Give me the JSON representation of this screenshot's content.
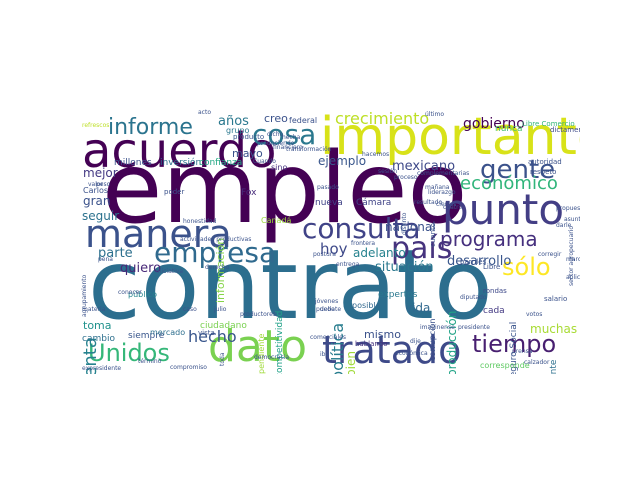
{
  "words": [
    {
      "text": "empleo",
      "color": "#440154"
    },
    {
      "text": "contrato",
      "color": "#2c6e8e"
    },
    {
      "text": "importante",
      "color": "#d8e219"
    },
    {
      "text": "acuerdo",
      "color": "#440154"
    },
    {
      "text": "manera",
      "color": "#3b528b"
    },
    {
      "text": "punto",
      "color": "#433e85"
    },
    {
      "text": "dato",
      "color": "#7ad151"
    },
    {
      "text": "tratado",
      "color": "#3e4a89"
    },
    {
      "text": "país",
      "color": "#46337e"
    },
    {
      "text": "consulta",
      "color": "#404387"
    },
    {
      "text": "empresa",
      "color": "#306a8e"
    },
    {
      "text": "cosa",
      "color": "#2a788e"
    },
    {
      "text": "informe",
      "color": "#2b748e"
    },
    {
      "text": "gente",
      "color": "#3b528b"
    },
    {
      "text": "programa",
      "color": "#46307e"
    },
    {
      "text": "tiempo",
      "color": "#481f70"
    },
    {
      "text": "Unidos",
      "color": "#35b779"
    },
    {
      "text": "sólo",
      "color": "#fde725"
    },
    {
      "text": "crecimiento",
      "color": "#bddf26"
    },
    {
      "text": "económico",
      "color": "#31b57b"
    },
    {
      "text": "desarrollo",
      "color": "#39568c"
    },
    {
      "text": "nacional",
      "color": "#3b528b"
    },
    {
      "text": "hecho",
      "color": "#39568c"
    },
    {
      "text": "gobierno",
      "color": "#440154"
    },
    {
      "text": "hoy",
      "color": "#3e4989"
    },
    {
      "text": "cuenta",
      "color": "#26828e"
    },
    {
      "text": "parte",
      "color": "#2d708e"
    },
    {
      "text": "quiero",
      "color": "#482878"
    },
    {
      "text": "años",
      "color": "#2a788e"
    },
    {
      "text": "mexicano",
      "color": "#3e4989"
    },
    {
      "text": "política",
      "color": "#287d8e"
    },
    {
      "text": "ejemplo",
      "color": "#39568c"
    },
    {
      "text": "situación",
      "color": "#2a788e"
    },
    {
      "text": "producción",
      "color": "#20a386"
    },
    {
      "text": "adelanto",
      "color": "#26828e"
    },
    {
      "text": "vida",
      "color": "#31688e"
    },
    {
      "text": "mismo",
      "color": "#3b528b"
    },
    {
      "text": "bien",
      "color": "#a0da39"
    },
    {
      "text": "muchas",
      "color": "#a8db34"
    },
    {
      "text": "mejor",
      "color": "#443983"
    },
    {
      "text": "gran",
      "color": "#3b528b"
    },
    {
      "text": "seguir",
      "color": "#2c728e"
    },
    {
      "text": "creo",
      "color": "#3b528b"
    },
    {
      "text": "mayo",
      "color": "#3b528b"
    },
    {
      "text": "toma",
      "color": "#20928c"
    },
    {
      "text": "cambio",
      "color": "#2d708e"
    },
    {
      "text": "siempre",
      "color": "#39568c"
    },
    {
      "text": "expertos",
      "color": "#2a788e"
    },
    {
      "text": "cada",
      "color": "#443a83"
    },
    {
      "text": "nunca",
      "color": "#4ac16d"
    },
    {
      "text": "Fox",
      "color": "#472c7a"
    },
    {
      "text": "nueva",
      "color": "#404387"
    },
    {
      "text": "Cámara",
      "color": "#414487"
    },
    {
      "text": "fertilizante",
      "color": "#2d708e"
    },
    {
      "text": "Seguro Social",
      "color": "#3a548c"
    },
    {
      "text": "información",
      "color": "#86d549"
    },
    {
      "text": "competitividad",
      "color": "#1fa188"
    },
    {
      "text": "inversión",
      "color": "#2c718e"
    },
    {
      "text": "millones",
      "color": "#3b528b"
    },
    {
      "text": "confianza",
      "color": "#22a884"
    },
    {
      "text": "grupo",
      "color": "#2a788e"
    },
    {
      "text": "federal",
      "color": "#3b528b"
    },
    {
      "text": "posible",
      "color": "#31688e"
    },
    {
      "text": "público",
      "color": "#25848e"
    },
    {
      "text": "mercado",
      "color": "#2e6f8e"
    },
    {
      "text": "ciudadano",
      "color": "#7ad151"
    },
    {
      "text": "Carlos",
      "color": "#3b528b"
    },
    {
      "text": "sino",
      "color": "#46337e"
    },
    {
      "text": "Canadá",
      "color": "#9bd93c"
    },
    {
      "text": "corresponde",
      "color": "#5ec962"
    },
    {
      "text": "corrupción",
      "color": "#3b528b"
    },
    {
      "text": "pendiente",
      "color": "#a0da39"
    },
    {
      "text": "Libre Comercio",
      "color": "#35b779"
    },
    {
      "text": "dictamen",
      "color": "#3e4a89"
    },
    {
      "text": "hablando",
      "color": "#46327e"
    },
    {
      "text": "salario",
      "color": "#3b528b"
    },
    {
      "text": "rondas",
      "color": "#3e4989"
    },
    {
      "text": "vista",
      "color": "#3b528b"
    },
    {
      "text": "poder",
      "color": "#3b528b"
    },
    {
      "text": "producto",
      "color": "#39568c"
    },
    {
      "text": "respeto",
      "color": "#3b528b"
    },
    {
      "text": "barriles",
      "color": "#3b528b"
    },
    {
      "text": "Libre",
      "color": "#3b528b"
    },
    {
      "text": "autoridad",
      "color": "#3b528b"
    },
    {
      "text": "acto",
      "color": "#3b528b"
    },
    {
      "text": "refrescos",
      "color": "#bddf26"
    },
    {
      "text": "pasado",
      "color": "#3b528b"
    },
    {
      "text": "cuanto",
      "color": "#3b528b"
    },
    {
      "text": "toda",
      "color": "#3b528b"
    },
    {
      "text": "último",
      "color": "#3b528b"
    },
    {
      "text": "diputado",
      "color": "#3b528b"
    },
    {
      "text": "comerciales",
      "color": "#3b528b"
    },
    {
      "text": "entrega",
      "color": "#3b528b"
    },
    {
      "text": "actividades productivas",
      "color": "#3b528b"
    },
    {
      "text": "frontera",
      "color": "#3b528b"
    },
    {
      "text": "derecho",
      "color": "#3b528b"
    },
    {
      "text": "postura",
      "color": "#3b528b"
    },
    {
      "text": "honestidad",
      "color": "#3b528b"
    },
    {
      "text": "Cuando",
      "color": "#3b528b"
    },
    {
      "text": "dicho",
      "color": "#3b528b"
    },
    {
      "text": "produciendo",
      "color": "#3b528b"
    },
    {
      "text": "financiero",
      "color": "#3b528b"
    },
    {
      "text": "mañana",
      "color": "#3b528b"
    },
    {
      "text": "valor",
      "color": "#3b528b"
    },
    {
      "text": "peso",
      "color": "#3b528b"
    },
    {
      "text": "conocer",
      "color": "#3b528b"
    },
    {
      "text": "término",
      "color": "#3b528b"
    },
    {
      "text": "democracia",
      "color": "#3b528b"
    },
    {
      "text": "jóvenes",
      "color": "#3b528b"
    },
    {
      "text": "debate",
      "color": "#3b528b"
    },
    {
      "text": "imaginense",
      "color": "#3b528b"
    },
    {
      "text": "presidente",
      "color": "#3b528b"
    },
    {
      "text": "dije",
      "color": "#3b528b"
    },
    {
      "text": "calzador",
      "color": "#3b528b"
    },
    {
      "text": "prensa",
      "color": "#3b528b"
    },
    {
      "text": "materia",
      "color": "#3b528b"
    },
    {
      "text": "expresidente",
      "color": "#3b528b"
    },
    {
      "text": "compromiso",
      "color": "#3b528b"
    },
    {
      "text": "agrupamiento",
      "color": "#3b528b"
    },
    {
      "text": "liderazgo",
      "color": "#3b528b"
    },
    {
      "text": "resultado",
      "color": "#3b528b"
    },
    {
      "text": "complementarias",
      "color": "#3b528b"
    },
    {
      "text": "asunto",
      "color": "#3b528b"
    },
    {
      "text": "sector agropecuario",
      "color": "#3b528b"
    },
    {
      "text": "transformación",
      "color": "#3b528b"
    },
    {
      "text": "puedo",
      "color": "#3b528b"
    },
    {
      "text": "hacemos",
      "color": "#3b528b"
    },
    {
      "text": "iniciativa",
      "color": "#3b528b"
    },
    {
      "text": "pena",
      "color": "#3b528b"
    },
    {
      "text": "sesión",
      "color": "#3b528b"
    },
    {
      "text": "darle",
      "color": "#3b528b"
    },
    {
      "text": "propuesta",
      "color": "#3b528b"
    },
    {
      "text": "ciertos",
      "color": "#3b528b"
    },
    {
      "text": "proceso",
      "color": "#3b528b"
    },
    {
      "text": "distinto",
      "color": "#3b528b"
    },
    {
      "text": "cuatro",
      "color": "#3b528b"
    },
    {
      "text": "caso",
      "color": "#3b528b"
    },
    {
      "text": "julio",
      "color": "#3b528b"
    },
    {
      "text": "iba",
      "color": "#3b528b"
    },
    {
      "text": "económica",
      "color": "#3b528b"
    },
    {
      "text": "hecha",
      "color": "#3b528b"
    },
    {
      "text": "productores",
      "color": "#3b528b"
    },
    {
      "text": "votos",
      "color": "#3b528b"
    },
    {
      "text": "corregir",
      "color": "#3b528b"
    },
    {
      "text": "marca",
      "color": "#3b528b"
    },
    {
      "text": "aplicar",
      "color": "#3b528b"
    },
    {
      "text": "cosecha",
      "color": "#3b528b"
    }
  ]
}
